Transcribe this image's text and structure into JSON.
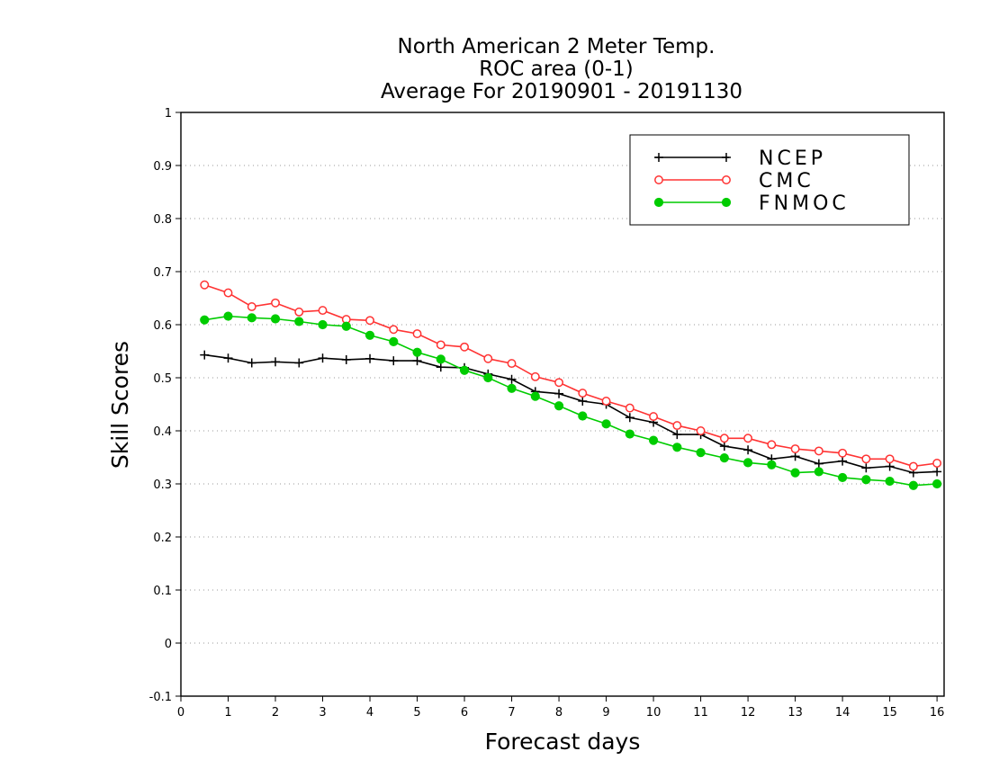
{
  "chart_data": {
    "type": "line",
    "title": [
      "North American 2 Meter Temp.",
      "ROC area (0-1)",
      "Average For 20190901 - 20191130"
    ],
    "xlabel": "Forecast days",
    "ylabel": "Skill Scores",
    "xlim": [
      0,
      16.15
    ],
    "ylim": [
      -0.1,
      1.0
    ],
    "xticks": [
      0,
      1,
      2,
      3,
      4,
      5,
      6,
      7,
      8,
      9,
      10,
      11,
      12,
      13,
      14,
      15,
      16
    ],
    "yticks": [
      -0.1,
      0,
      0.1,
      0.2,
      0.3,
      0.4,
      0.5,
      0.6,
      0.7,
      0.8,
      0.9,
      1
    ],
    "ytick_labels": [
      "-0.1",
      "0",
      "0.1",
      "0.2",
      "0.3",
      "0.4",
      "0.5",
      "0.6",
      "0.7",
      "0.8",
      "0.9",
      "1"
    ],
    "grid": "horizontal dotted",
    "legend_position": "top-right",
    "x": [
      0.5,
      1.0,
      1.5,
      2.0,
      2.5,
      3.0,
      3.5,
      4.0,
      4.5,
      5.0,
      5.5,
      6.0,
      6.5,
      7.0,
      7.5,
      8.0,
      8.5,
      9.0,
      9.5,
      10.0,
      10.5,
      11.0,
      11.5,
      12.0,
      12.5,
      13.0,
      13.5,
      14.0,
      14.5,
      15.0,
      15.5,
      16.0
    ],
    "series": [
      {
        "name": "NCEP",
        "color": "#000000",
        "marker": "plus",
        "values": [
          0.543,
          0.537,
          0.528,
          0.53,
          0.528,
          0.537,
          0.534,
          0.536,
          0.532,
          0.532,
          0.52,
          0.519,
          0.507,
          0.497,
          0.474,
          0.47,
          0.456,
          0.45,
          0.425,
          0.416,
          0.393,
          0.393,
          0.371,
          0.364,
          0.347,
          0.352,
          0.338,
          0.343,
          0.33,
          0.333,
          0.321,
          0.323
        ]
      },
      {
        "name": "CMC",
        "color": "#ff3333",
        "marker": "open-circle",
        "values": [
          0.675,
          0.66,
          0.634,
          0.641,
          0.624,
          0.627,
          0.61,
          0.608,
          0.591,
          0.583,
          0.562,
          0.558,
          0.536,
          0.527,
          0.502,
          0.491,
          0.471,
          0.456,
          0.443,
          0.427,
          0.41,
          0.4,
          0.386,
          0.386,
          0.374,
          0.366,
          0.362,
          0.358,
          0.347,
          0.347,
          0.333,
          0.339
        ]
      },
      {
        "name": "FNMOC",
        "color": "#00cc00",
        "marker": "filled-circle",
        "values": [
          0.609,
          0.616,
          0.613,
          0.611,
          0.606,
          0.6,
          0.597,
          0.58,
          0.568,
          0.548,
          0.535,
          0.514,
          0.5,
          0.48,
          0.465,
          0.447,
          0.428,
          0.413,
          0.394,
          0.382,
          0.369,
          0.359,
          0.349,
          0.34,
          0.336,
          0.321,
          0.323,
          0.312,
          0.308,
          0.305,
          0.297,
          0.3
        ]
      }
    ]
  }
}
